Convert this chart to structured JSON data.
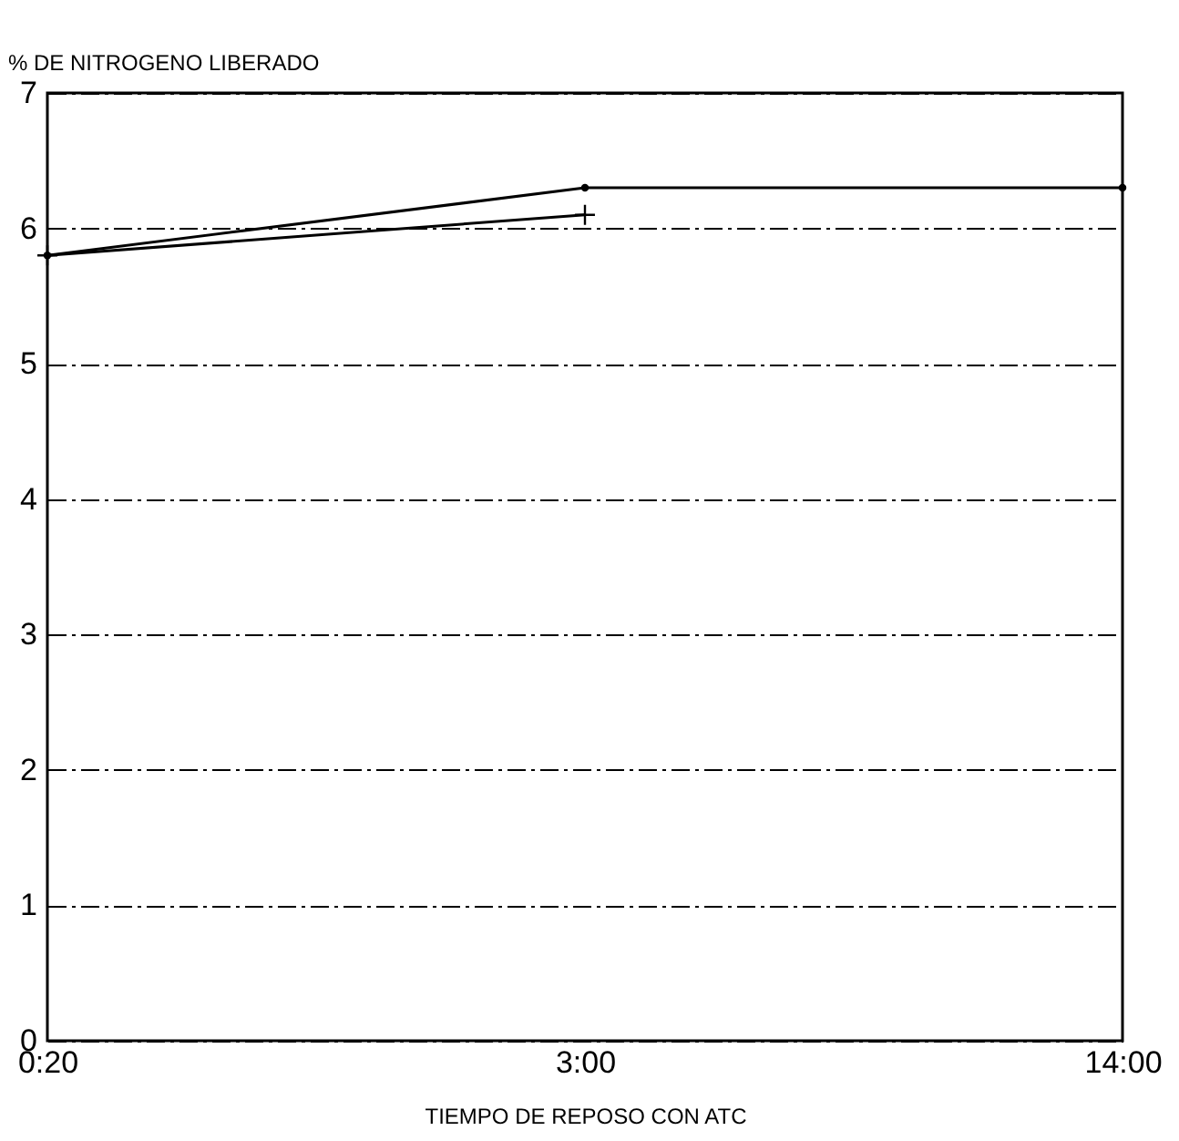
{
  "chart_data": {
    "type": "line",
    "ylabel": "% DE NITROGENO LIBERADO",
    "xlabel": "TIEMPO DE REPOSO CON ATC",
    "categories": [
      "0:20",
      "3:00",
      "14:00"
    ],
    "series": [
      {
        "color": "#000000",
        "marker": "circle",
        "values": [
          5.8,
          6.3,
          6.3
        ]
      },
      {
        "color": "#000000",
        "marker": "cross",
        "values": [
          5.8,
          6.1,
          null
        ]
      }
    ],
    "ylim": [
      0,
      7
    ],
    "yticks": [
      0,
      1,
      2,
      3,
      4,
      5,
      6,
      7
    ],
    "grid": "y",
    "line_style": "solid"
  }
}
